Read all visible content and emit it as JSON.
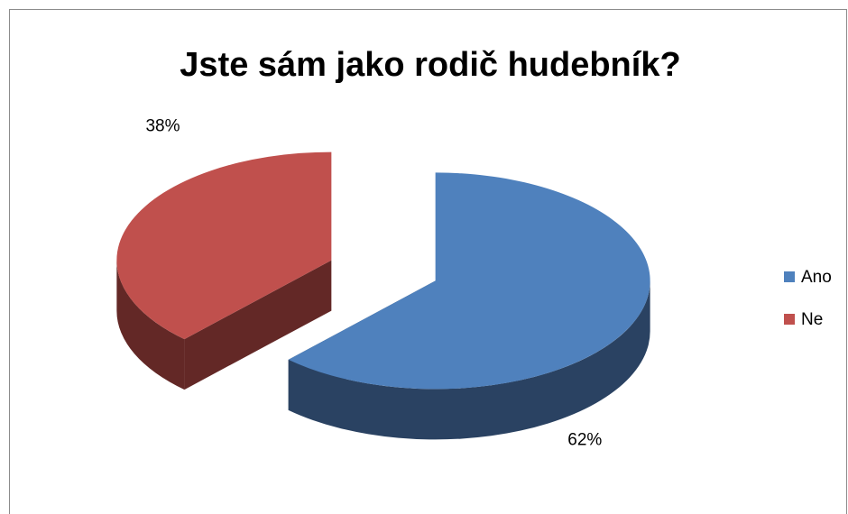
{
  "chart_data": {
    "type": "pie",
    "title": "Jste sám jako rodič hudebník?",
    "categories": [
      "Ano",
      "Ne"
    ],
    "values": [
      62,
      38
    ],
    "labels": [
      "62%",
      "38%"
    ],
    "colors": {
      "Ano": {
        "top": "#4f81bd",
        "side": "#2a4262"
      },
      "Ne": {
        "top": "#c0504d",
        "side": "#632826"
      }
    },
    "style": "3d-exploded",
    "legend": {
      "position": "right",
      "entries": [
        "Ano",
        "Ne"
      ]
    }
  }
}
